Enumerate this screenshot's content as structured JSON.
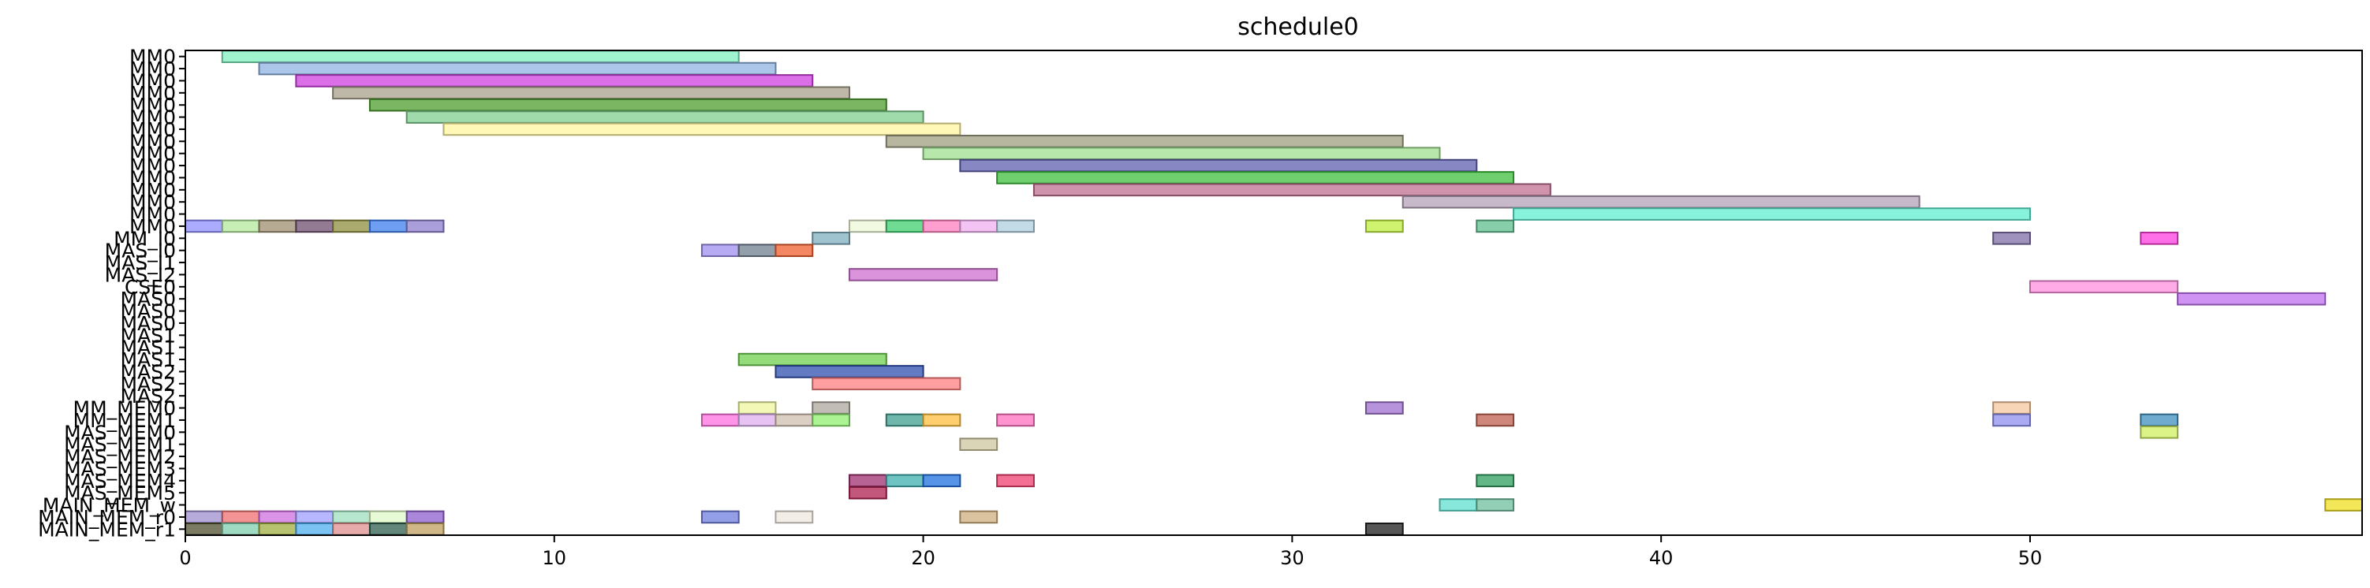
{
  "chart_data": {
    "type": "gantt",
    "title": "schedule0",
    "xlim": [
      0,
      59
    ],
    "x_ticks": [
      0,
      10,
      20,
      30,
      40,
      50
    ],
    "grid": false,
    "rows": [
      "MM0",
      "MM0",
      "MM0",
      "MM0",
      "MM0",
      "MM0",
      "MM0",
      "MM0",
      "MM0",
      "MM0",
      "MM0",
      "MM0",
      "MM0",
      "MM0",
      "MM0",
      "MM_I0",
      "MAS_I0",
      "MAS_I1",
      "MAS_I2",
      "CSE0",
      "MAS0",
      "MAS0",
      "MAS0",
      "MAS1",
      "MAS1",
      "MAS1",
      "MAS2",
      "MAS2",
      "MAS2",
      "MM_MEM0",
      "MM_MEM1",
      "MAS_MEM0",
      "MAS_MEM1",
      "MAS_MEM2",
      "MAS_MEM3",
      "MAS_MEM4",
      "MAS_MEM5",
      "MAIN_MEM_w",
      "MAIN_MEM_r0",
      "MAIN_MEM_r1"
    ],
    "bars": [
      {
        "row": 0,
        "start": 1,
        "end": 15,
        "color": "#7fefbf"
      },
      {
        "row": 1,
        "start": 2,
        "end": 16,
        "color": "#8fb3e0"
      },
      {
        "row": 2,
        "start": 3,
        "end": 17,
        "color": "#cf3fdf"
      },
      {
        "row": 3,
        "start": 4,
        "end": 18,
        "color": "#a8a08c"
      },
      {
        "row": 4,
        "start": 5,
        "end": 19,
        "color": "#4f9f2f"
      },
      {
        "row": 5,
        "start": 6,
        "end": 20,
        "color": "#7fcf8f"
      },
      {
        "row": 6,
        "start": 7,
        "end": 21,
        "color": "#fff59f"
      },
      {
        "row": 7,
        "start": 19,
        "end": 33,
        "color": "#9f9f80"
      },
      {
        "row": 8,
        "start": 20,
        "end": 34,
        "color": "#9fdf8f"
      },
      {
        "row": 9,
        "start": 21,
        "end": 35,
        "color": "#5f5faf"
      },
      {
        "row": 10,
        "start": 22,
        "end": 36,
        "color": "#3fbf3f"
      },
      {
        "row": 11,
        "start": 23,
        "end": 37,
        "color": "#bf6f8f"
      },
      {
        "row": 12,
        "start": 33,
        "end": 47,
        "color": "#b4a0b8"
      },
      {
        "row": 13,
        "start": 36,
        "end": 50,
        "color": "#5fefd0"
      },
      {
        "row": 14,
        "start": 0,
        "end": 1,
        "color": "#8f8fff"
      },
      {
        "row": 14,
        "start": 1,
        "end": 2,
        "color": "#b4e89c"
      },
      {
        "row": 14,
        "start": 2,
        "end": 3,
        "color": "#9f8f6f"
      },
      {
        "row": 14,
        "start": 3,
        "end": 4,
        "color": "#6f4f6f"
      },
      {
        "row": 14,
        "start": 4,
        "end": 5,
        "color": "#8f8f3f"
      },
      {
        "row": 14,
        "start": 5,
        "end": 6,
        "color": "#3f7fef"
      },
      {
        "row": 14,
        "start": 6,
        "end": 7,
        "color": "#8f7fcf"
      },
      {
        "row": 14,
        "start": 18,
        "end": 19,
        "color": "#eff8d8"
      },
      {
        "row": 14,
        "start": 19,
        "end": 20,
        "color": "#3fcf6f"
      },
      {
        "row": 14,
        "start": 20,
        "end": 21,
        "color": "#ff7fbf"
      },
      {
        "row": 14,
        "start": 21,
        "end": 22,
        "color": "#efafef"
      },
      {
        "row": 14,
        "start": 22,
        "end": 23,
        "color": "#afcfdf"
      },
      {
        "row": 14,
        "start": 32,
        "end": 33,
        "color": "#bfef3f"
      },
      {
        "row": 14,
        "start": 35,
        "end": 36,
        "color": "#5fbf8f"
      },
      {
        "row": 15,
        "start": 17,
        "end": 18,
        "color": "#7fafbf"
      },
      {
        "row": 15,
        "start": 49,
        "end": 50,
        "color": "#7f6fa7"
      },
      {
        "row": 15,
        "start": 53,
        "end": 54,
        "color": "#ff3fdf"
      },
      {
        "row": 16,
        "start": 14,
        "end": 15,
        "color": "#9f8fef"
      },
      {
        "row": 16,
        "start": 15,
        "end": 16,
        "color": "#6f7f8f"
      },
      {
        "row": 16,
        "start": 16,
        "end": 17,
        "color": "#ef5f2f"
      },
      {
        "row": 18,
        "start": 18,
        "end": 22,
        "color": "#cf6fcf"
      },
      {
        "row": 19,
        "start": 50,
        "end": 54,
        "color": "#ff8fdf"
      },
      {
        "row": 20,
        "start": 54,
        "end": 58,
        "color": "#bf6fef"
      },
      {
        "row": 25,
        "start": 15,
        "end": 19,
        "color": "#6fcf4f"
      },
      {
        "row": 26,
        "start": 16,
        "end": 20,
        "color": "#2f4faf"
      },
      {
        "row": 27,
        "start": 17,
        "end": 21,
        "color": "#ff7f7f"
      },
      {
        "row": 29,
        "start": 15,
        "end": 16,
        "color": "#eff59f"
      },
      {
        "row": 29,
        "start": 17,
        "end": 18,
        "color": "#afa79f"
      },
      {
        "row": 29,
        "start": 32,
        "end": 33,
        "color": "#9f6fcf"
      },
      {
        "row": 29,
        "start": 49,
        "end": 50,
        "color": "#f5c79f"
      },
      {
        "row": 30,
        "start": 14,
        "end": 15,
        "color": "#ff6fdf"
      },
      {
        "row": 30,
        "start": 15,
        "end": 16,
        "color": "#dfafef"
      },
      {
        "row": 30,
        "start": 16,
        "end": 17,
        "color": "#cfbfaf"
      },
      {
        "row": 30,
        "start": 17,
        "end": 18,
        "color": "#8fef6f"
      },
      {
        "row": 30,
        "start": 19,
        "end": 20,
        "color": "#3f9f8f"
      },
      {
        "row": 30,
        "start": 20,
        "end": 21,
        "color": "#ffbf3f"
      },
      {
        "row": 30,
        "start": 22,
        "end": 23,
        "color": "#ff6fbf"
      },
      {
        "row": 30,
        "start": 35,
        "end": 36,
        "color": "#bf5f4f"
      },
      {
        "row": 30,
        "start": 49,
        "end": 50,
        "color": "#8f8fef"
      },
      {
        "row": 30,
        "start": 53,
        "end": 54,
        "color": "#3f8fbf"
      },
      {
        "row": 31,
        "start": 53,
        "end": 54,
        "color": "#cfef5f"
      },
      {
        "row": 32,
        "start": 21,
        "end": 22,
        "color": "#cfc7a0"
      },
      {
        "row": 35,
        "start": 18,
        "end": 19,
        "color": "#9f2f6f"
      },
      {
        "row": 35,
        "start": 19,
        "end": 20,
        "color": "#3fafaf"
      },
      {
        "row": 35,
        "start": 20,
        "end": 21,
        "color": "#1f6fdf"
      },
      {
        "row": 35,
        "start": 22,
        "end": 23,
        "color": "#ef3f6f"
      },
      {
        "row": 35,
        "start": 35,
        "end": 36,
        "color": "#2f9f5f"
      },
      {
        "row": 36,
        "start": 18,
        "end": 19,
        "color": "#af1f4f"
      },
      {
        "row": 37,
        "start": 34,
        "end": 35,
        "color": "#5fdfcf"
      },
      {
        "row": 37,
        "start": 35,
        "end": 36,
        "color": "#6fbf9f"
      },
      {
        "row": 37,
        "start": 58,
        "end": 59,
        "color": "#efdf1f"
      },
      {
        "row": 38,
        "start": 0,
        "end": 1,
        "color": "#9f8fcf"
      },
      {
        "row": 38,
        "start": 1,
        "end": 2,
        "color": "#ef6f6f"
      },
      {
        "row": 38,
        "start": 2,
        "end": 3,
        "color": "#cf6fdf"
      },
      {
        "row": 38,
        "start": 3,
        "end": 4,
        "color": "#9f9fff"
      },
      {
        "row": 38,
        "start": 4,
        "end": 5,
        "color": "#9fdfbf"
      },
      {
        "row": 38,
        "start": 5,
        "end": 6,
        "color": "#dff8c8"
      },
      {
        "row": 38,
        "start": 6,
        "end": 7,
        "color": "#8f5fcf"
      },
      {
        "row": 38,
        "start": 14,
        "end": 15,
        "color": "#6f7fdf"
      },
      {
        "row": 38,
        "start": 16,
        "end": 17,
        "color": "#efe7df"
      },
      {
        "row": 38,
        "start": 21,
        "end": 22,
        "color": "#cfaf7f"
      },
      {
        "row": 39,
        "start": 0,
        "end": 1,
        "color": "#4f4f2f"
      },
      {
        "row": 39,
        "start": 1,
        "end": 2,
        "color": "#7fcfaf"
      },
      {
        "row": 39,
        "start": 2,
        "end": 3,
        "color": "#9faf3f"
      },
      {
        "row": 39,
        "start": 3,
        "end": 4,
        "color": "#4fafef"
      },
      {
        "row": 39,
        "start": 4,
        "end": 5,
        "color": "#df8f8f"
      },
      {
        "row": 39,
        "start": 5,
        "end": 6,
        "color": "#2f5f4f"
      },
      {
        "row": 39,
        "start": 6,
        "end": 7,
        "color": "#bf9f5f"
      },
      {
        "row": 39,
        "start": 32,
        "end": 33,
        "color": "#1f1f1f"
      }
    ]
  }
}
